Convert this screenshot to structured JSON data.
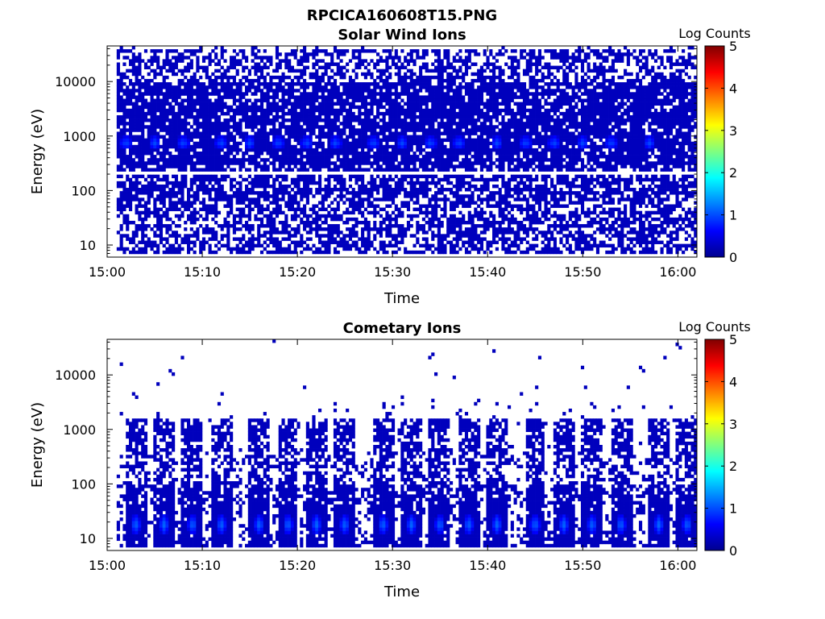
{
  "figure_title": "RPCICA160608T15.PNG",
  "chart_data": [
    {
      "type": "heatmap",
      "title": "Solar Wind Ions",
      "xlabel": "Time",
      "ylabel": "Energy (eV)",
      "x_range": [
        "15:00",
        "16:02"
      ],
      "x_ticks": [
        "15:00",
        "15:10",
        "15:20",
        "15:30",
        "15:40",
        "15:50",
        "16:00"
      ],
      "y_scale": "log",
      "ylim": [
        6,
        45000
      ],
      "y_ticks": [
        "10",
        "100",
        "1000",
        "10000"
      ],
      "colorbar": {
        "label": "Log Counts",
        "range": [
          0,
          5
        ],
        "ticks": [
          "0",
          "1",
          "2",
          "3",
          "4",
          "5"
        ],
        "colormap": "jet"
      },
      "grid": false,
      "data_time_range": [
        "15:01",
        "16:02"
      ],
      "features": {
        "background_log_counts": 0.3,
        "peak_energy_eV": 750,
        "peak_log_counts": 1.0,
        "peak_times": [
          "15:02",
          "15:05",
          "15:08",
          "15:12",
          "15:15",
          "15:18",
          "15:21",
          "15:24",
          "15:28",
          "15:31",
          "15:34",
          "15:37",
          "15:41",
          "15:44",
          "15:47",
          "15:50",
          "15:53",
          "15:57"
        ],
        "gap_energy_eV": 200
      }
    },
    {
      "type": "heatmap",
      "title": "Cometary Ions",
      "xlabel": "Time",
      "ylabel": "Energy (eV)",
      "x_range": [
        "15:00",
        "16:02"
      ],
      "x_ticks": [
        "15:00",
        "15:10",
        "15:20",
        "15:30",
        "15:40",
        "15:50",
        "16:00"
      ],
      "y_scale": "log",
      "ylim": [
        6,
        45000
      ],
      "y_ticks": [
        "10",
        "100",
        "1000",
        "10000"
      ],
      "colorbar": {
        "label": "Log Counts",
        "range": [
          0,
          5
        ],
        "ticks": [
          "0",
          "1",
          "2",
          "3",
          "4",
          "5"
        ],
        "colormap": "jet"
      },
      "grid": false,
      "data_time_range": [
        "15:01",
        "16:02"
      ],
      "features": {
        "background_log_counts": 0.3,
        "low_energy_peak_eV": 18,
        "peak_log_counts": 1.2,
        "burst_energy_range_eV": [
          8,
          1500
        ],
        "peak_times": [
          "15:03",
          "15:06",
          "15:09",
          "15:12",
          "15:16",
          "15:19",
          "15:22",
          "15:25",
          "15:29",
          "15:32",
          "15:35",
          "15:38",
          "15:41",
          "15:45",
          "15:48",
          "15:51",
          "15:54",
          "15:58",
          "16:01"
        ]
      }
    }
  ]
}
